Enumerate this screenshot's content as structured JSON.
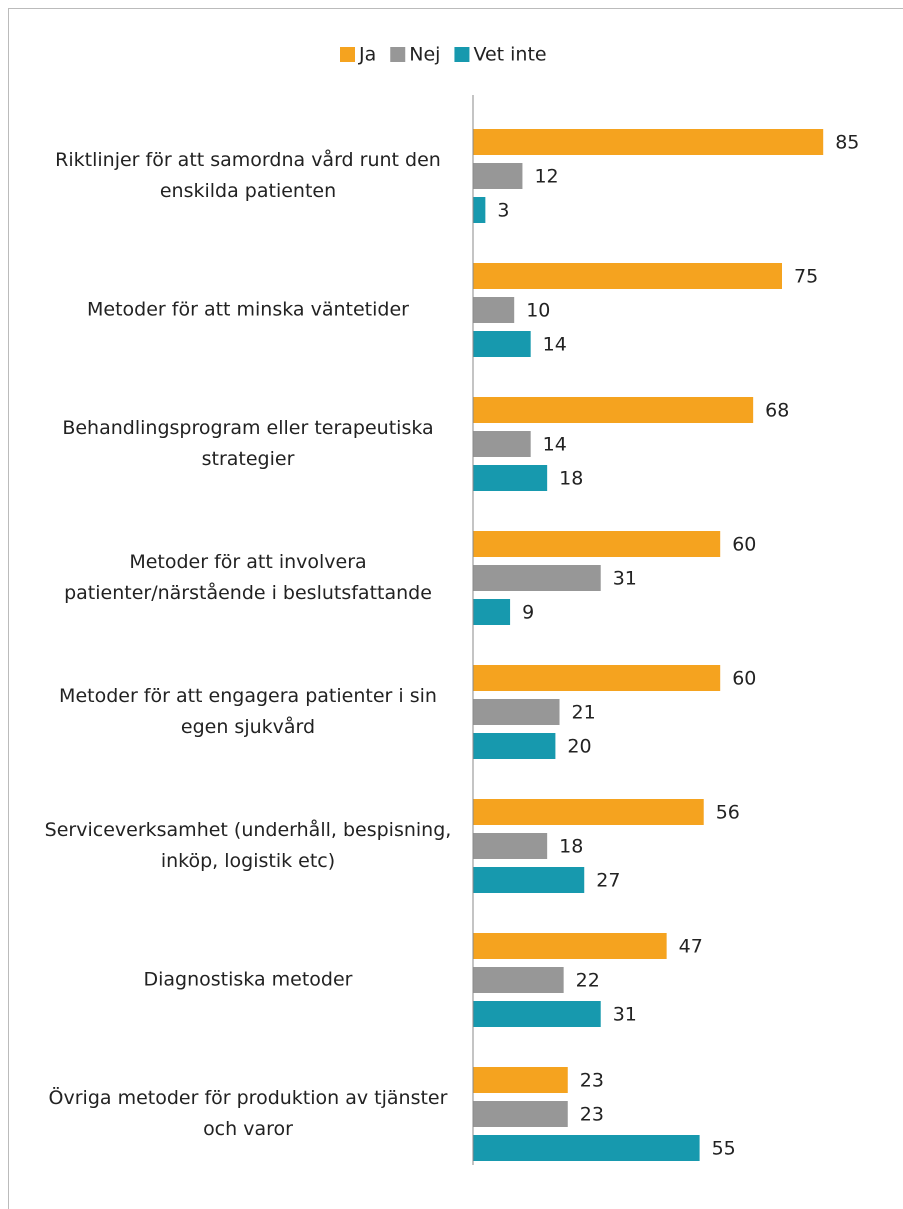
{
  "chart_data": {
    "type": "bar",
    "orientation": "horizontal",
    "categories": [
      "Riktlinjer för att samordna vård runt den enskilda patienten",
      "Metoder för att minska väntetider",
      "Behandlingsprogram eller terapeutiska strategier",
      "Metoder för att involvera patienter/närstående i beslutsfattande",
      "Metoder för att engagera patienter i sin egen sjukvård",
      "Serviceverksamhet (underhåll, bespisning, inköp, logistik etc)",
      "Diagnostiska metoder",
      "Övriga metoder för produktion av tjänster och varor"
    ],
    "series": [
      {
        "name": "Ja",
        "color": "#f5a31f",
        "values": [
          85,
          75,
          68,
          60,
          60,
          56,
          47,
          23
        ]
      },
      {
        "name": "Nej",
        "color": "#979797",
        "values": [
          12,
          10,
          14,
          31,
          21,
          18,
          22,
          23
        ]
      },
      {
        "name": "Vet inte",
        "color": "#1799ae",
        "values": [
          3,
          14,
          18,
          9,
          20,
          27,
          31,
          55
        ]
      }
    ],
    "xlim": [
      0,
      100
    ],
    "legend": "top"
  }
}
